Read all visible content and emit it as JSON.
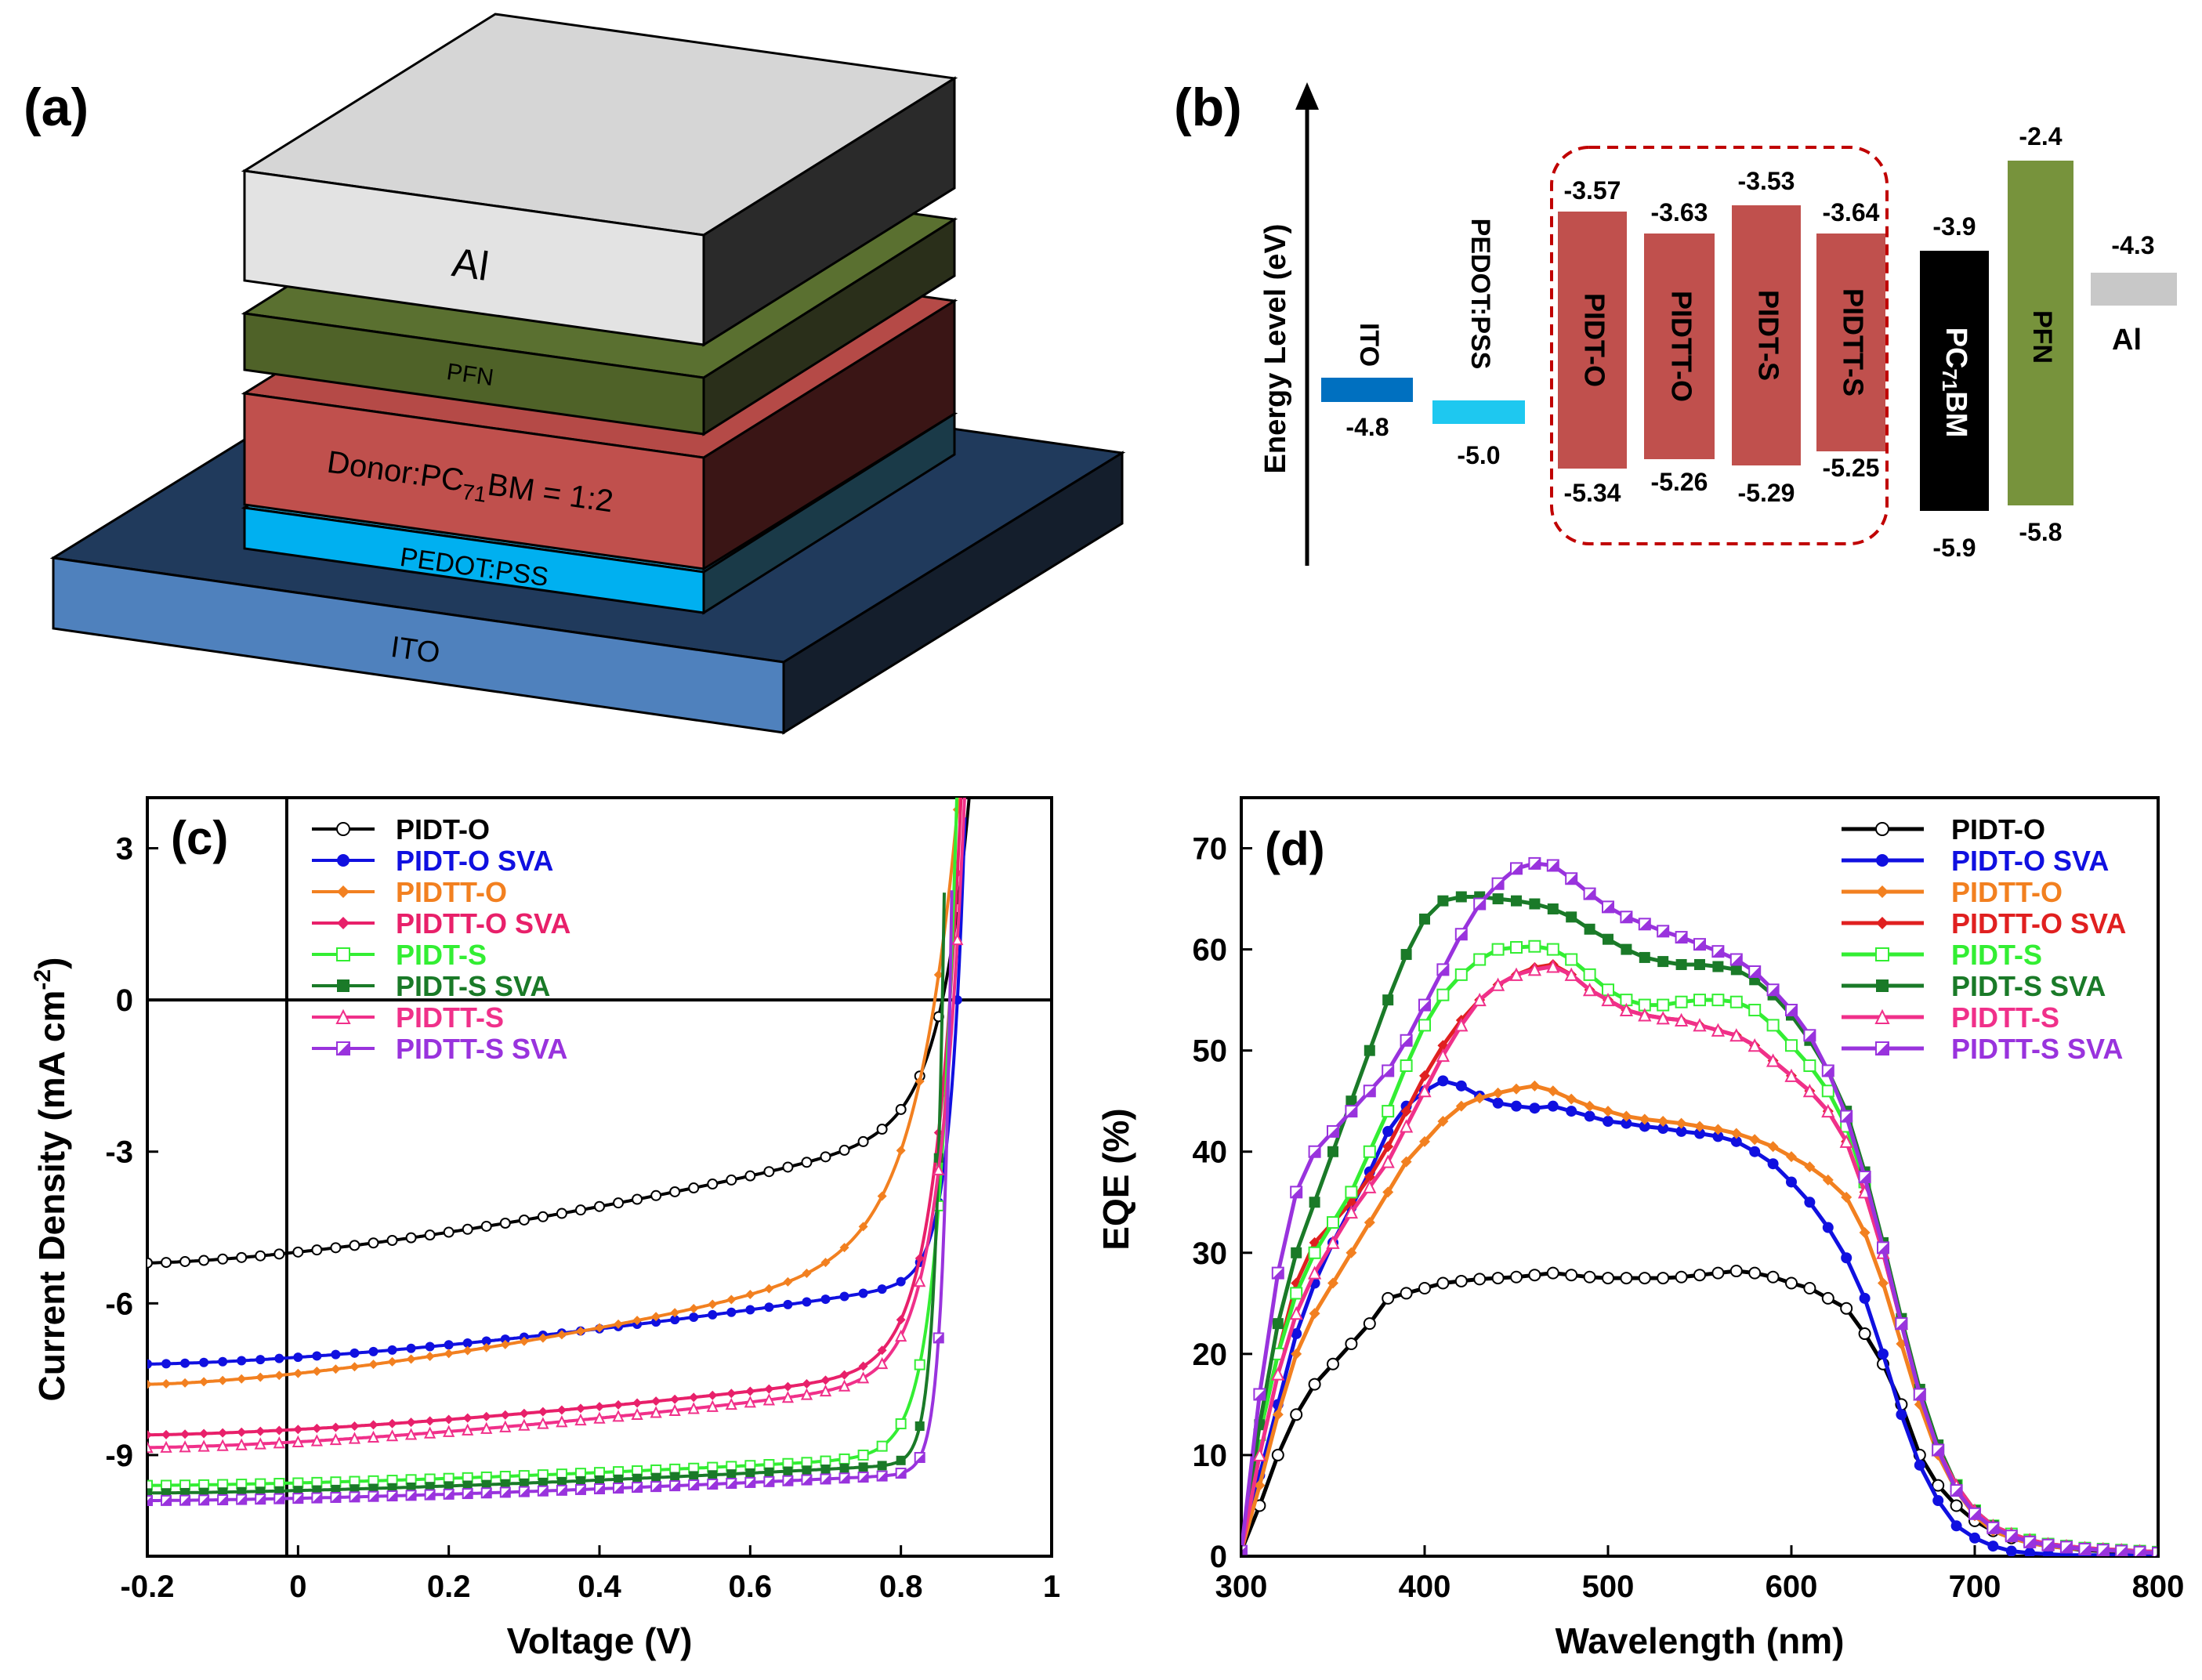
{
  "colors": {
    "al_front": "#e3e3e3",
    "al_top": "#d6d6d6",
    "al_side": "#2a2a2a",
    "pfn_front": "#4f6228",
    "pfn_top": "#5a7030",
    "pfn_side": "#2a2f1a",
    "donor_front": "#c0504d",
    "donor_top": "#b54a47",
    "donor_side": "#3a1515",
    "pedot_front": "#00b0f0",
    "pedot_top": "#1fa8d8",
    "pedot_side": "#1a3a48",
    "ito_front": "#4f81bd",
    "ito_top": "#203a5c",
    "ito_side": "#141e2c",
    "ito_level": "#0070c0",
    "pedot_level": "#1ec8f0",
    "donor_level": "#c0504d",
    "pcbm_level": "#000000",
    "pfn_level": "#77933c",
    "al_level": "#c8c8c8",
    "box_dash": "#c00000"
  },
  "panel_a": {
    "tag": "(a)",
    "layers": {
      "al": "Al",
      "pfn": "PFN",
      "donor_pre": "Donor:PC",
      "donor_sub": "71",
      "donor_post": "BM = 1:2",
      "pedot": "PEDOT:PSS",
      "ito": "ITO"
    }
  },
  "panel_b": {
    "tag": "(b)",
    "axis_label": "Energy Level (eV)",
    "levels": [
      {
        "name": "ITO",
        "value": "-4.8"
      },
      {
        "name": "PEDOT:PSS",
        "value": "-5.0"
      },
      {
        "name": "PIDT-O",
        "top": "-3.57",
        "bottom": "-5.34"
      },
      {
        "name": "PIDTT-O",
        "top": "-3.63",
        "bottom": "-5.26"
      },
      {
        "name": "PIDT-S",
        "top": "-3.53",
        "bottom": "-5.29"
      },
      {
        "name": "PIDTT-S",
        "top": "-3.64",
        "bottom": "-5.25"
      },
      {
        "name_pre": "PC",
        "name_sub": "71",
        "name_post": "BM",
        "top": "-3.9",
        "bottom": "-5.9"
      },
      {
        "name": "PFN",
        "top": "-2.4",
        "bottom": "-5.8"
      },
      {
        "name": "Al",
        "value": "-4.3"
      }
    ]
  },
  "chart_data": [
    {
      "panel": "(c)",
      "type": "line",
      "xlabel": "Voltage (V)",
      "ylabel": "Current Density (mA cm",
      "ylabel_sup": "-2",
      "ylabel_end": ")",
      "xlim": [
        -0.2,
        1.0
      ],
      "ylim": [
        -11,
        4
      ],
      "x_ticks": [
        "-0.2",
        "0",
        "0.2",
        "0.4",
        "0.6",
        "0.8",
        "1"
      ],
      "y_ticks": [
        "3",
        "0",
        "-3",
        "-6",
        "-9"
      ],
      "series": [
        {
          "name": "PIDT-O",
          "color": "#000000",
          "marker": "open-circle",
          "jsc": -5.2,
          "voc": 0.855,
          "dv": 0.039,
          "s": 2.4,
          "n": 1.5,
          "rs": 0.0
        },
        {
          "name": "PIDT-O SVA",
          "color": "#1010e0",
          "marker": "filled-circle",
          "jsc": -7.2,
          "voc": 0.875,
          "dv": 0.02,
          "s": 1.5,
          "n": 1.5,
          "rs": 0.0
        },
        {
          "name": "PIDTT-O",
          "color": "#f28020",
          "marker": "diamond",
          "jsc": -7.6,
          "voc": 0.845,
          "dv": 0.055,
          "s": 2.4,
          "n": 1.5,
          "rs": 0.0
        },
        {
          "name": "PIDTT-O SVA",
          "color": "#e8206a",
          "marker": "diamond",
          "jsc": -8.6,
          "voc": 0.865,
          "dv": 0.034,
          "s": 1.2,
          "n": 1.5,
          "rs": 0.0
        },
        {
          "name": "PIDT-S",
          "color": "#33ee33",
          "marker": "open-square",
          "jsc": -9.6,
          "voc": 0.865,
          "dv": 0.025,
          "s": 0.55,
          "n": 1.5,
          "rs": 0.0
        },
        {
          "name": "PIDT-S SVA",
          "color": "#1a7a28",
          "marker": "filled-square",
          "jsc": -9.75,
          "voc": 0.855,
          "dv": 0.012,
          "s": 0.55,
          "n": 1.5,
          "rs": 0.0
        },
        {
          "name": "PIDTT-S",
          "color": "#f0308a",
          "marker": "triangle",
          "jsc": -8.85,
          "voc": 0.87,
          "dv": 0.034,
          "s": 1.25,
          "n": 1.5,
          "rs": 0.0
        },
        {
          "name": "PIDTT-S SVA",
          "color": "#9933dd",
          "marker": "half-square",
          "jsc": -9.9,
          "voc": 0.865,
          "dv": 0.012,
          "s": 0.5,
          "n": 1.5,
          "rs": 0.0
        }
      ]
    },
    {
      "panel": "(d)",
      "type": "line",
      "xlabel": "Wavelength (nm)",
      "ylabel": "EQE (%)",
      "xlim": [
        300,
        800
      ],
      "ylim": [
        0,
        75
      ],
      "x_ticks": [
        "300",
        "400",
        "500",
        "600",
        "700",
        "800"
      ],
      "y_ticks": [
        "0",
        "10",
        "20",
        "30",
        "40",
        "50",
        "60",
        "70"
      ],
      "x": [
        300,
        310,
        320,
        330,
        340,
        350,
        360,
        370,
        380,
        390,
        400,
        410,
        420,
        430,
        440,
        450,
        460,
        470,
        480,
        490,
        500,
        510,
        520,
        530,
        540,
        550,
        560,
        570,
        580,
        590,
        600,
        610,
        620,
        630,
        640,
        650,
        660,
        670,
        680,
        690,
        700,
        710,
        720,
        730,
        740,
        750,
        760,
        770,
        780,
        790,
        800
      ],
      "series": [
        {
          "name": "PIDT-O",
          "color": "#000000",
          "marker": "open-circle",
          "values": [
            0.5,
            5,
            10,
            14,
            17,
            19,
            21,
            23,
            25.5,
            26,
            26.5,
            27,
            27.2,
            27.4,
            27.5,
            27.6,
            27.8,
            28,
            27.8,
            27.6,
            27.5,
            27.5,
            27.5,
            27.5,
            27.6,
            27.8,
            28,
            28.2,
            28,
            27.6,
            27,
            26.5,
            25.5,
            24.5,
            22,
            19,
            15,
            10,
            7,
            5,
            3.5,
            2.5,
            1.8,
            1.3,
            1,
            0.8,
            0.6,
            0.5,
            0.4,
            0.3,
            0.3
          ]
        },
        {
          "name": "PIDT-O SVA",
          "color": "#1010e0",
          "marker": "filled-circle",
          "values": [
            0.5,
            8,
            15,
            22,
            27,
            31,
            34.5,
            38,
            42,
            44.5,
            46,
            47,
            46.5,
            45.5,
            44.8,
            44.5,
            44.3,
            44.5,
            44,
            43.5,
            43,
            42.8,
            42.5,
            42.3,
            42,
            41.8,
            41.5,
            41,
            40,
            38.8,
            37,
            35,
            32.5,
            29.5,
            25.5,
            20,
            14,
            9,
            5.5,
            3,
            1.8,
            1,
            0.5,
            0.3,
            0.2,
            0.1,
            0.1,
            0.1,
            0.1,
            0.1,
            0.1
          ]
        },
        {
          "name": "PIDTT-O",
          "color": "#f28020",
          "marker": "diamond",
          "values": [
            0.5,
            7,
            14,
            20,
            24,
            27,
            30,
            33,
            36,
            39,
            41,
            43,
            44.5,
            45.3,
            45.8,
            46.2,
            46.5,
            46,
            45.2,
            44.5,
            44,
            43.5,
            43.2,
            43,
            42.8,
            42.5,
            42.2,
            41.8,
            41.2,
            40.5,
            39.5,
            38.5,
            37.2,
            35.5,
            32,
            27,
            21,
            15,
            10,
            6.5,
            4,
            2.5,
            1.8,
            1.3,
            1,
            0.8,
            0.7,
            0.6,
            0.5,
            0.4,
            0.3
          ]
        },
        {
          "name": "PIDTT-O SVA",
          "color": "#e02020",
          "marker": "diamond",
          "values": [
            0.5,
            12,
            20,
            27,
            31,
            33,
            35,
            37.5,
            40.5,
            44,
            47.5,
            50.5,
            53,
            55,
            56.5,
            57.5,
            58.2,
            58.5,
            57.5,
            56,
            55,
            54,
            53.5,
            53.2,
            53,
            52.5,
            52,
            51.5,
            50.5,
            49,
            47.5,
            46,
            44,
            41,
            36,
            30,
            23,
            16,
            10.5,
            7,
            4.5,
            3,
            2.2,
            1.6,
            1.2,
            1,
            0.8,
            0.7,
            0.6,
            0.5,
            0.4
          ]
        },
        {
          "name": "PIDT-S",
          "color": "#33ee33",
          "marker": "open-square",
          "values": [
            0.5,
            12,
            20,
            26,
            30,
            33,
            36,
            40,
            44,
            48.5,
            52.5,
            55.5,
            57.5,
            59,
            60,
            60.2,
            60.3,
            60,
            59,
            57.5,
            56,
            55,
            54.5,
            54.5,
            54.8,
            55,
            55,
            54.8,
            54,
            52.5,
            50.5,
            48.5,
            46,
            42.5,
            37,
            30.5,
            23,
            16,
            10.5,
            7,
            4.5,
            3,
            2.2,
            1.6,
            1.2,
            1,
            0.8,
            0.7,
            0.6,
            0.5,
            0.4
          ]
        },
        {
          "name": "PIDT-S SVA",
          "color": "#1a7a28",
          "marker": "filled-square",
          "values": [
            0.5,
            13,
            23,
            30,
            35,
            40,
            45,
            50,
            55,
            59.5,
            63,
            64.8,
            65.2,
            65.2,
            65,
            64.8,
            64.5,
            64,
            63.2,
            62,
            61,
            60,
            59.2,
            58.8,
            58.5,
            58.5,
            58.3,
            58,
            57,
            55.5,
            53.5,
            51,
            48,
            44,
            38,
            31,
            23.5,
            16.5,
            11,
            7,
            4.5,
            3,
            2,
            1.5,
            1.1,
            0.9,
            0.7,
            0.6,
            0.5,
            0.5,
            0.4
          ]
        },
        {
          "name": "PIDTT-S",
          "color": "#f0308a",
          "marker": "triangle",
          "values": [
            0.5,
            10,
            18,
            24,
            28,
            31,
            34,
            36.5,
            39,
            42.5,
            46,
            49.5,
            52.5,
            55,
            56.5,
            57.5,
            58,
            58.3,
            57.5,
            56,
            55,
            54,
            53.5,
            53.2,
            53,
            52.5,
            52,
            51.5,
            50.5,
            49,
            47.5,
            46,
            44,
            41,
            36,
            30,
            23,
            16,
            10.5,
            7,
            4.5,
            3,
            2.2,
            1.6,
            1.2,
            1,
            0.8,
            0.7,
            0.6,
            0.5,
            0.4
          ]
        },
        {
          "name": "PIDTT-S SVA",
          "color": "#9933dd",
          "marker": "half-square",
          "values": [
            0.5,
            16,
            28,
            36,
            40,
            42,
            44,
            46,
            48,
            51,
            54.5,
            58,
            61.5,
            64.5,
            66.5,
            68,
            68.5,
            68.3,
            67,
            65.5,
            64.2,
            63.2,
            62.5,
            61.8,
            61.2,
            60.5,
            59.8,
            59,
            57.8,
            56,
            54,
            51.5,
            48,
            43.5,
            37.5,
            30.5,
            23,
            16,
            10.5,
            6.5,
            4.2,
            2.8,
            2,
            1.4,
            1.1,
            0.9,
            0.7,
            0.6,
            0.5,
            0.4,
            0.3
          ]
        }
      ]
    }
  ]
}
